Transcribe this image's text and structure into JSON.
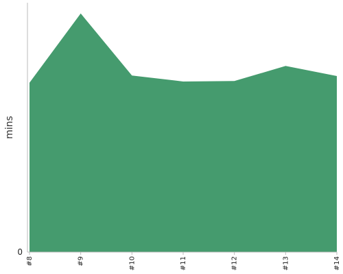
{
  "chart_data": {
    "type": "area",
    "categories": [
      "#8",
      "#9",
      "#10",
      "#11",
      "#12",
      "#13",
      "#14"
    ],
    "series": [
      {
        "values": [
          7.1,
          10.0,
          7.4,
          7.15,
          7.17,
          7.8,
          7.38
        ]
      }
    ],
    "ylabel": "mins",
    "xlabel": "",
    "y_tick_labels": [
      "0"
    ],
    "ylim": [
      0,
      10.45
    ],
    "grid": false,
    "legend": "none",
    "colors": {
      "area_fill": "#459B6E",
      "axis": "#bbbbbb",
      "tick_text": "#222222"
    }
  }
}
